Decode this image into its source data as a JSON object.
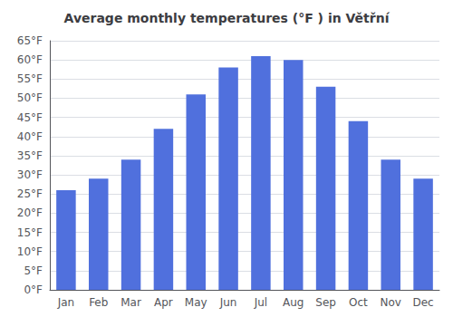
{
  "chart_data": {
    "type": "bar",
    "title": "Average monthly temperatures (°F ) in Větřní",
    "categories": [
      "Jan",
      "Feb",
      "Mar",
      "Apr",
      "May",
      "Jun",
      "Jul",
      "Aug",
      "Sep",
      "Oct",
      "Nov",
      "Dec"
    ],
    "values": [
      26,
      29,
      34,
      42,
      51,
      58,
      61,
      60,
      53,
      44,
      34,
      29
    ],
    "ylim": [
      0,
      65
    ],
    "yticks": [
      {
        "value": 0,
        "label": "0°F"
      },
      {
        "value": 5,
        "label": "5°F"
      },
      {
        "value": 10,
        "label": "10°F"
      },
      {
        "value": 15,
        "label": "15°F"
      },
      {
        "value": 20,
        "label": "20°F"
      },
      {
        "value": 25,
        "label": "25°F"
      },
      {
        "value": 30,
        "label": "30°F"
      },
      {
        "value": 35,
        "label": "35°F"
      },
      {
        "value": 40,
        "label": "40°F"
      },
      {
        "value": 45,
        "label": "45°F"
      },
      {
        "value": 50,
        "label": "50°F"
      },
      {
        "value": 55,
        "label": "55°F"
      },
      {
        "value": 60,
        "label": "60°F"
      },
      {
        "value": 65,
        "label": "65°F"
      }
    ],
    "grid": true
  }
}
